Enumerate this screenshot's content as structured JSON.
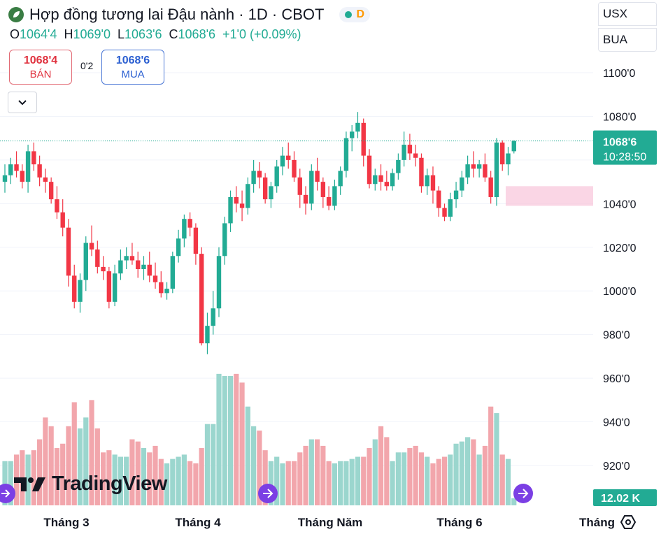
{
  "header": {
    "title": "Hợp đồng tương lai Đậu nành · 1D · CBOT",
    "status_letter": "D"
  },
  "ohlc": {
    "o_label": "O",
    "o": "1064'4",
    "h_label": "H",
    "h": "1069'0",
    "l_label": "L",
    "l": "1063'6",
    "c_label": "C",
    "c": "1068'6",
    "change": "+1'0 (+0.09%)"
  },
  "trade": {
    "sell_price": "1068'4",
    "sell_label": "BÁN",
    "spread": "0'2",
    "buy_price": "1068'6",
    "buy_label": "MUA"
  },
  "units": {
    "currency": "USX",
    "unit": "BUA"
  },
  "branding": {
    "logo_text": "TradingView"
  },
  "colors": {
    "up": "#22ab94",
    "down": "#f23645",
    "vol_up": "#9bd6ce",
    "vol_down": "#f2a6ac",
    "zone": "#f8c8dc"
  },
  "chart_data": {
    "type": "candlestick",
    "y_axis": {
      "ticks": [
        920,
        940,
        960,
        980,
        1000,
        1020,
        1040,
        1060,
        1080,
        1100
      ],
      "labels": [
        "920'0",
        "940'0",
        "960'0",
        "980'0",
        "1000'0",
        "1020'0",
        "1040'0",
        "1060'0",
        "1080'0",
        "1100'0"
      ],
      "range": [
        912,
        1112
      ]
    },
    "x_axis": {
      "labels": [
        "Tháng 3",
        "Tháng 4",
        "Tháng Năm",
        "Tháng 6",
        "Tháng"
      ]
    },
    "last_price": {
      "value": 1068.75,
      "label": "1068'6",
      "countdown": "10:28:50"
    },
    "volume_label": "12.02 K",
    "zone": {
      "low": 1039,
      "high": 1048
    },
    "candles": [
      [
        1050,
        1058,
        1045,
        1053
      ],
      [
        1053,
        1061,
        1049,
        1058
      ],
      [
        1058,
        1064,
        1052,
        1055
      ],
      [
        1055,
        1058,
        1047,
        1050
      ],
      [
        1050,
        1067,
        1045,
        1064
      ],
      [
        1064,
        1068,
        1055,
        1058
      ],
      [
        1058,
        1062,
        1048,
        1052
      ],
      [
        1052,
        1056,
        1045,
        1050
      ],
      [
        1050,
        1052,
        1040,
        1042
      ],
      [
        1042,
        1048,
        1033,
        1036
      ],
      [
        1036,
        1042,
        1025,
        1029
      ],
      [
        1029,
        1033,
        1002,
        1007
      ],
      [
        1007,
        1012,
        992,
        995
      ],
      [
        995,
        1008,
        990,
        1005
      ],
      [
        1005,
        1025,
        1000,
        1022
      ],
      [
        1022,
        1030,
        1016,
        1019
      ],
      [
        1019,
        1023,
        1008,
        1011
      ],
      [
        1011,
        1016,
        1005,
        1009
      ],
      [
        1009,
        1011,
        992,
        995
      ],
      [
        995,
        1012,
        993,
        1008
      ],
      [
        1008,
        1019,
        1005,
        1014
      ],
      [
        1014,
        1020,
        1010,
        1016
      ],
      [
        1016,
        1022,
        1012,
        1014
      ],
      [
        1014,
        1018,
        1006,
        1010
      ],
      [
        1010,
        1016,
        1005,
        1012
      ],
      [
        1012,
        1018,
        1004,
        1007
      ],
      [
        1007,
        1013,
        1001,
        1004
      ],
      [
        1004,
        1009,
        997,
        999
      ],
      [
        999,
        1004,
        996,
        1001
      ],
      [
        1001,
        1018,
        999,
        1016
      ],
      [
        1016,
        1028,
        1013,
        1024
      ],
      [
        1024,
        1035,
        1020,
        1033
      ],
      [
        1033,
        1036,
        1025,
        1029
      ],
      [
        1029,
        1031,
        1012,
        1017
      ],
      [
        1017,
        1020,
        975,
        976
      ],
      [
        976,
        990,
        971,
        984
      ],
      [
        984,
        1000,
        980,
        992
      ],
      [
        992,
        1020,
        988,
        1016
      ],
      [
        1016,
        1034,
        1012,
        1031
      ],
      [
        1031,
        1046,
        1027,
        1043
      ],
      [
        1043,
        1048,
        1036,
        1040
      ],
      [
        1040,
        1046,
        1032,
        1038
      ],
      [
        1038,
        1052,
        1035,
        1049
      ],
      [
        1049,
        1060,
        1045,
        1055
      ],
      [
        1055,
        1059,
        1047,
        1052
      ],
      [
        1052,
        1054,
        1040,
        1042
      ],
      [
        1042,
        1050,
        1038,
        1048
      ],
      [
        1048,
        1060,
        1045,
        1057
      ],
      [
        1057,
        1066,
        1053,
        1062
      ],
      [
        1062,
        1068,
        1056,
        1060
      ],
      [
        1060,
        1064,
        1050,
        1052
      ],
      [
        1052,
        1056,
        1038,
        1044
      ],
      [
        1044,
        1048,
        1035,
        1040
      ],
      [
        1040,
        1058,
        1037,
        1055
      ],
      [
        1055,
        1061,
        1046,
        1050
      ],
      [
        1050,
        1052,
        1038,
        1043
      ],
      [
        1043,
        1048,
        1037,
        1039
      ],
      [
        1039,
        1051,
        1037,
        1048
      ],
      [
        1048,
        1057,
        1044,
        1055
      ],
      [
        1055,
        1073,
        1052,
        1070
      ],
      [
        1070,
        1076,
        1064,
        1073
      ],
      [
        1073,
        1082,
        1070,
        1077
      ],
      [
        1077,
        1079,
        1057,
        1062
      ],
      [
        1062,
        1065,
        1047,
        1049
      ],
      [
        1049,
        1056,
        1046,
        1053
      ],
      [
        1053,
        1058,
        1046,
        1050
      ],
      [
        1050,
        1055,
        1046,
        1048
      ],
      [
        1048,
        1056,
        1046,
        1054
      ],
      [
        1054,
        1063,
        1051,
        1060
      ],
      [
        1060,
        1073,
        1057,
        1067
      ],
      [
        1067,
        1072,
        1060,
        1063
      ],
      [
        1063,
        1067,
        1057,
        1061
      ],
      [
        1061,
        1063,
        1045,
        1048
      ],
      [
        1048,
        1056,
        1044,
        1053
      ],
      [
        1053,
        1057,
        1040,
        1046
      ],
      [
        1046,
        1048,
        1034,
        1038
      ],
      [
        1038,
        1040,
        1032,
        1034
      ],
      [
        1034,
        1045,
        1032,
        1042
      ],
      [
        1042,
        1050,
        1038,
        1046
      ],
      [
        1046,
        1055,
        1043,
        1052
      ],
      [
        1052,
        1062,
        1049,
        1058
      ],
      [
        1058,
        1064,
        1052,
        1056
      ],
      [
        1056,
        1060,
        1052,
        1058
      ],
      [
        1058,
        1063,
        1050,
        1052
      ],
      [
        1052,
        1055,
        1040,
        1043
      ],
      [
        1043,
        1070,
        1039,
        1068
      ],
      [
        1068,
        1069,
        1055,
        1058
      ],
      [
        1058,
        1066,
        1053,
        1063
      ],
      [
        1064,
        1069,
        1063,
        1068.75
      ]
    ],
    "volume": [
      922,
      922,
      925,
      927,
      925,
      927,
      932,
      942,
      938,
      928,
      930,
      938,
      949,
      937,
      942,
      950,
      937,
      926,
      927,
      925,
      924,
      924,
      932,
      931,
      928,
      926,
      929,
      923,
      921,
      923,
      924,
      925,
      922,
      921,
      928,
      939,
      939,
      962,
      961,
      961,
      962,
      958,
      947,
      938,
      936,
      927,
      922,
      924,
      921,
      922,
      922,
      926,
      929,
      932,
      932,
      929,
      922,
      921,
      922,
      922,
      923,
      924,
      924,
      928,
      932,
      938,
      933,
      922,
      926,
      926,
      928,
      929,
      926,
      924,
      921,
      923,
      924,
      925,
      930,
      931,
      933,
      932,
      925,
      929,
      947,
      944,
      925,
      923,
      905
    ]
  }
}
